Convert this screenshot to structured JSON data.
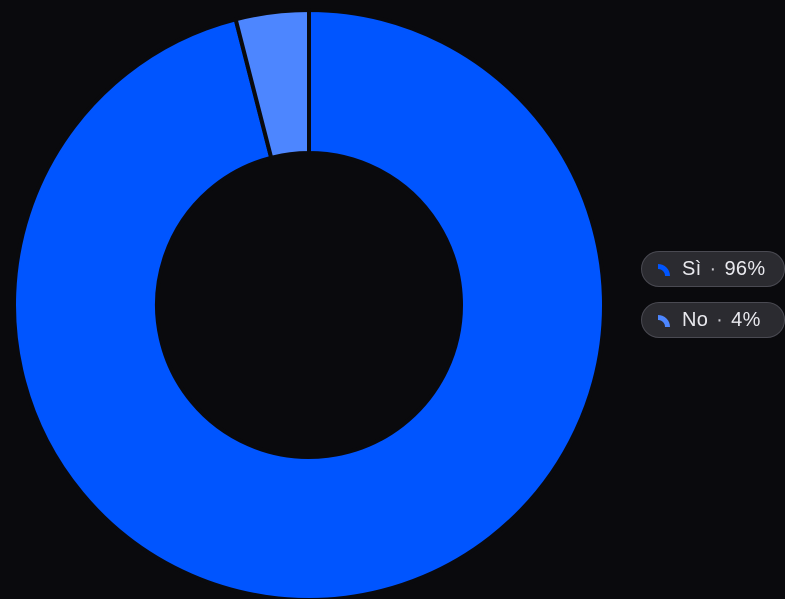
{
  "chart_data": {
    "type": "pie",
    "variant": "donut",
    "slices": [
      {
        "label": "Sì",
        "value": 96,
        "percent_label": "96%",
        "color": "#0055ff"
      },
      {
        "label": "No",
        "value": 4,
        "percent_label": "4%",
        "color": "#4d86ff"
      }
    ],
    "legend_placement": "right",
    "background": "#0a0a0d",
    "separator": "·"
  }
}
